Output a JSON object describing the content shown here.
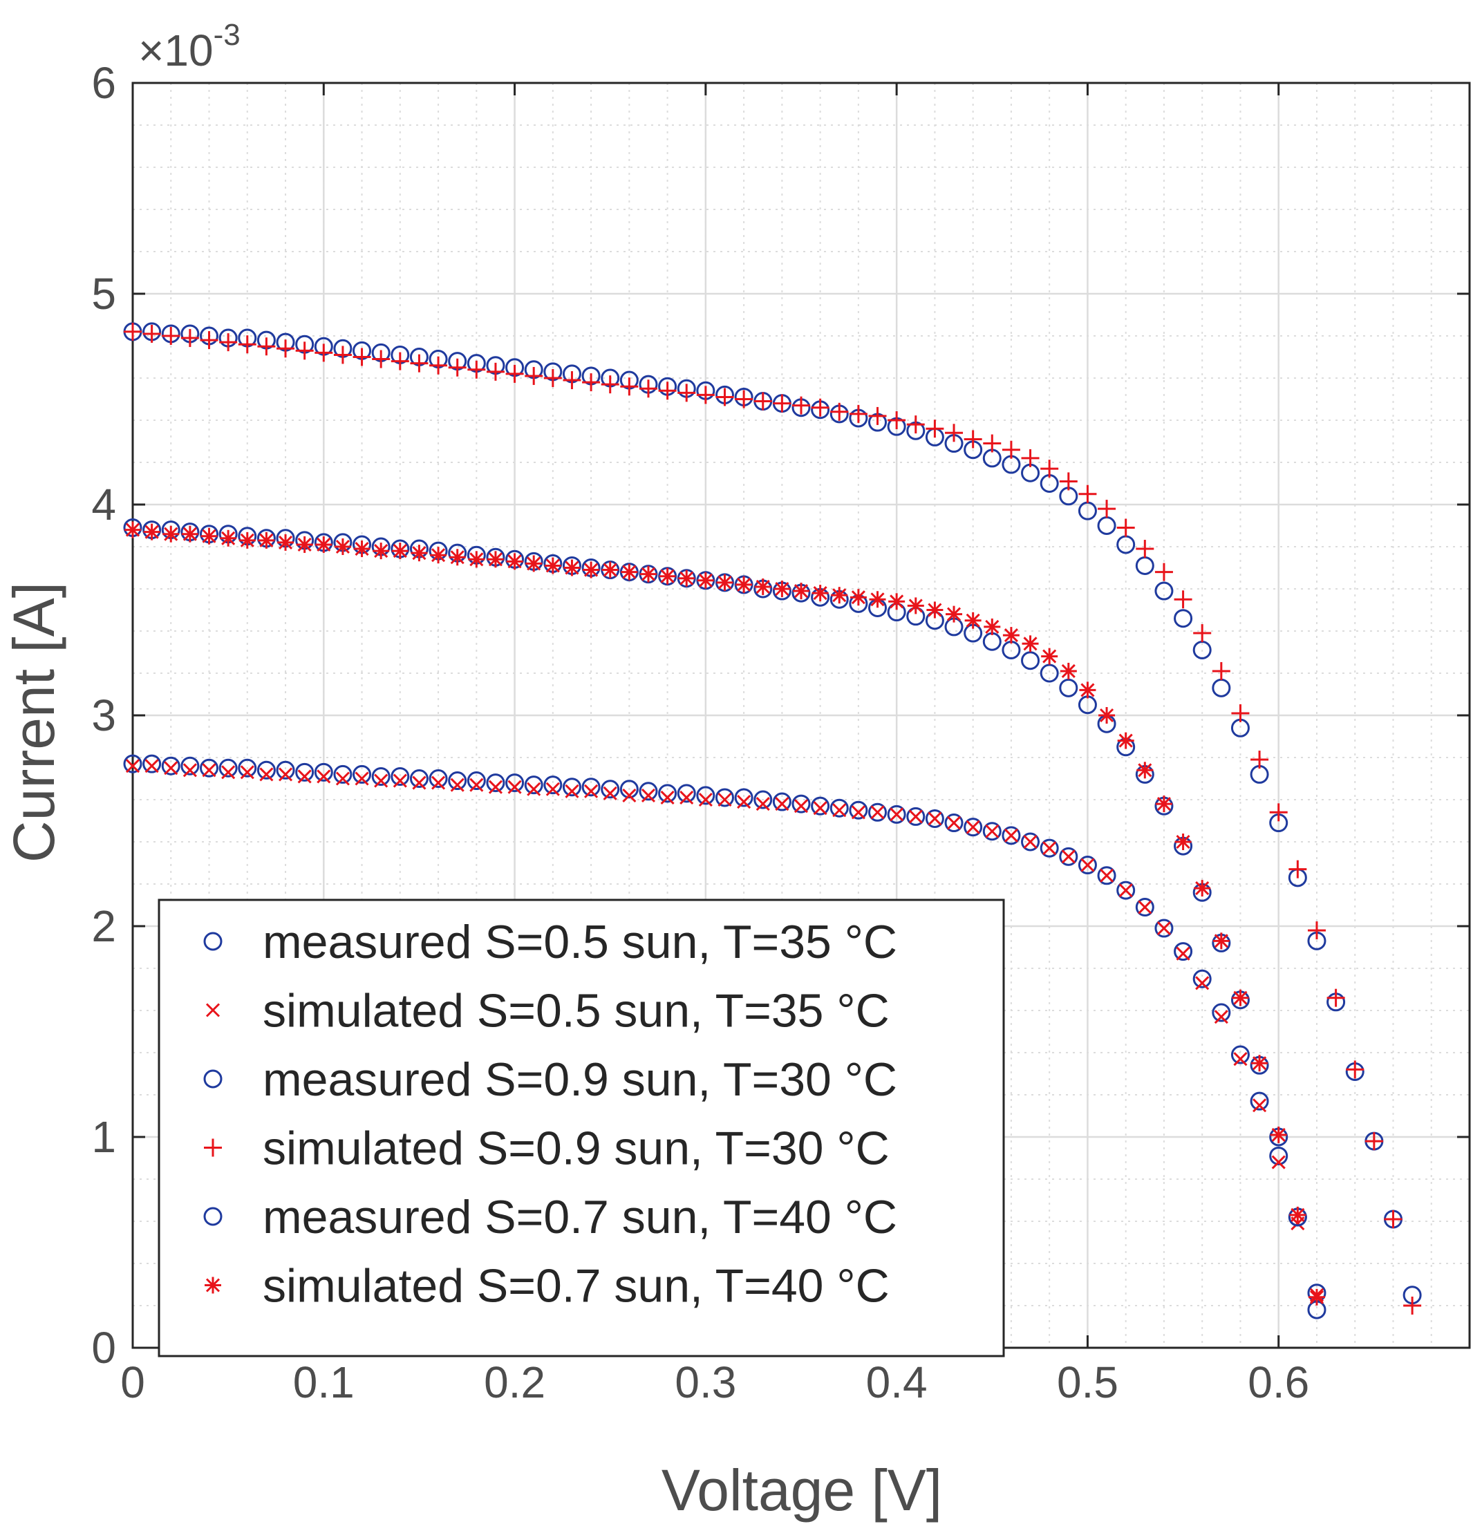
{
  "chart_data": {
    "type": "scatter",
    "title": "",
    "xlabel": "Voltage [V]",
    "ylabel": "Current [A]",
    "y_exponent_label": "×10",
    "y_exponent_power": "-3",
    "xlim": [
      0,
      0.7
    ],
    "ylim": [
      0,
      6
    ],
    "x_ticks": [
      0,
      0.1,
      0.2,
      0.3,
      0.4,
      0.5,
      0.6
    ],
    "x_tick_labels": [
      "0",
      "0.1",
      "0.2",
      "0.3",
      "0.4",
      "0.5",
      "0.6"
    ],
    "y_ticks": [
      0,
      1,
      2,
      3,
      4,
      5,
      6
    ],
    "y_tick_labels": [
      "0",
      "1",
      "2",
      "3",
      "4",
      "5",
      "6"
    ],
    "grid": true,
    "minor_grid": true,
    "legend_position": "bottom-left",
    "colors": {
      "measured": "#1f3a9e",
      "simulated": "#e8141b",
      "axis": "#262626",
      "grid": "#dcdcdc"
    },
    "series": [
      {
        "name": "measured S=0.5 sun, T=35 °C",
        "marker": "circle",
        "color": "#1f3a9e",
        "x": [
          0,
          0.01,
          0.02,
          0.03,
          0.04,
          0.05,
          0.06,
          0.07,
          0.08,
          0.09,
          0.1,
          0.11,
          0.12,
          0.13,
          0.14,
          0.15,
          0.16,
          0.17,
          0.18,
          0.19,
          0.2,
          0.21,
          0.22,
          0.23,
          0.24,
          0.25,
          0.26,
          0.27,
          0.28,
          0.29,
          0.3,
          0.31,
          0.32,
          0.33,
          0.34,
          0.35,
          0.36,
          0.37,
          0.38,
          0.39,
          0.4,
          0.41,
          0.42,
          0.43,
          0.44,
          0.45,
          0.46,
          0.47,
          0.48,
          0.49,
          0.5,
          0.51,
          0.52,
          0.53,
          0.54,
          0.55,
          0.56,
          0.57,
          0.58,
          0.59,
          0.6,
          0.61,
          0.62
        ],
        "y": [
          2.77,
          2.77,
          2.76,
          2.76,
          2.75,
          2.75,
          2.75,
          2.74,
          2.74,
          2.73,
          2.73,
          2.72,
          2.72,
          2.71,
          2.71,
          2.7,
          2.7,
          2.69,
          2.69,
          2.68,
          2.68,
          2.67,
          2.67,
          2.66,
          2.66,
          2.65,
          2.65,
          2.64,
          2.63,
          2.63,
          2.62,
          2.61,
          2.61,
          2.6,
          2.59,
          2.58,
          2.57,
          2.56,
          2.55,
          2.54,
          2.53,
          2.52,
          2.51,
          2.49,
          2.47,
          2.45,
          2.43,
          2.4,
          2.37,
          2.33,
          2.29,
          2.24,
          2.17,
          2.09,
          1.99,
          1.88,
          1.75,
          1.59,
          1.39,
          1.17,
          0.91,
          0.62,
          0.26
        ]
      },
      {
        "name": "simulated S=0.5 sun, T=35 °C",
        "marker": "x",
        "color": "#e8141b",
        "x": [
          0,
          0.01,
          0.02,
          0.03,
          0.04,
          0.05,
          0.06,
          0.07,
          0.08,
          0.09,
          0.1,
          0.11,
          0.12,
          0.13,
          0.14,
          0.15,
          0.16,
          0.17,
          0.18,
          0.19,
          0.2,
          0.21,
          0.22,
          0.23,
          0.24,
          0.25,
          0.26,
          0.27,
          0.28,
          0.29,
          0.3,
          0.31,
          0.32,
          0.33,
          0.34,
          0.35,
          0.36,
          0.37,
          0.38,
          0.39,
          0.4,
          0.41,
          0.42,
          0.43,
          0.44,
          0.45,
          0.46,
          0.47,
          0.48,
          0.49,
          0.5,
          0.51,
          0.52,
          0.53,
          0.54,
          0.55,
          0.56,
          0.57,
          0.58,
          0.59,
          0.6,
          0.61,
          0.62
        ],
        "y": [
          2.76,
          2.76,
          2.75,
          2.74,
          2.74,
          2.73,
          2.73,
          2.72,
          2.72,
          2.71,
          2.71,
          2.7,
          2.7,
          2.69,
          2.69,
          2.68,
          2.68,
          2.67,
          2.67,
          2.66,
          2.66,
          2.65,
          2.65,
          2.64,
          2.64,
          2.63,
          2.62,
          2.62,
          2.61,
          2.61,
          2.6,
          2.6,
          2.59,
          2.58,
          2.58,
          2.57,
          2.56,
          2.55,
          2.54,
          2.54,
          2.53,
          2.52,
          2.51,
          2.49,
          2.47,
          2.45,
          2.43,
          2.4,
          2.37,
          2.33,
          2.29,
          2.24,
          2.17,
          2.09,
          1.99,
          1.87,
          1.73,
          1.57,
          1.37,
          1.15,
          0.88,
          0.59,
          0.25
        ]
      },
      {
        "name": "measured S=0.9 sun, T=30 °C",
        "marker": "circle",
        "color": "#1f3a9e",
        "x": [
          0,
          0.01,
          0.02,
          0.03,
          0.04,
          0.05,
          0.06,
          0.07,
          0.08,
          0.09,
          0.1,
          0.11,
          0.12,
          0.13,
          0.14,
          0.15,
          0.16,
          0.17,
          0.18,
          0.19,
          0.2,
          0.21,
          0.22,
          0.23,
          0.24,
          0.25,
          0.26,
          0.27,
          0.28,
          0.29,
          0.3,
          0.31,
          0.32,
          0.33,
          0.34,
          0.35,
          0.36,
          0.37,
          0.38,
          0.39,
          0.4,
          0.41,
          0.42,
          0.43,
          0.44,
          0.45,
          0.46,
          0.47,
          0.48,
          0.49,
          0.5,
          0.51,
          0.52,
          0.53,
          0.54,
          0.55,
          0.56,
          0.57,
          0.58,
          0.59,
          0.6,
          0.61,
          0.62,
          0.63,
          0.64,
          0.65,
          0.66,
          0.67
        ],
        "y": [
          4.82,
          4.82,
          4.81,
          4.81,
          4.8,
          4.79,
          4.79,
          4.78,
          4.77,
          4.76,
          4.75,
          4.74,
          4.73,
          4.72,
          4.71,
          4.7,
          4.69,
          4.68,
          4.67,
          4.66,
          4.65,
          4.64,
          4.63,
          4.62,
          4.61,
          4.6,
          4.59,
          4.57,
          4.56,
          4.55,
          4.54,
          4.52,
          4.51,
          4.49,
          4.48,
          4.46,
          4.45,
          4.43,
          4.41,
          4.39,
          4.37,
          4.35,
          4.32,
          4.29,
          4.26,
          4.22,
          4.19,
          4.15,
          4.1,
          4.04,
          3.97,
          3.9,
          3.81,
          3.71,
          3.59,
          3.46,
          3.31,
          3.13,
          2.94,
          2.72,
          2.49,
          2.23,
          1.93,
          1.64,
          1.31,
          0.98,
          0.61,
          0.25
        ]
      },
      {
        "name": "simulated S=0.9 sun, T=30 °C",
        "marker": "plus",
        "color": "#e8141b",
        "x": [
          0,
          0.01,
          0.02,
          0.03,
          0.04,
          0.05,
          0.06,
          0.07,
          0.08,
          0.09,
          0.1,
          0.11,
          0.12,
          0.13,
          0.14,
          0.15,
          0.16,
          0.17,
          0.18,
          0.19,
          0.2,
          0.21,
          0.22,
          0.23,
          0.24,
          0.25,
          0.26,
          0.27,
          0.28,
          0.29,
          0.3,
          0.31,
          0.32,
          0.33,
          0.34,
          0.35,
          0.36,
          0.37,
          0.38,
          0.39,
          0.4,
          0.41,
          0.42,
          0.43,
          0.44,
          0.45,
          0.46,
          0.47,
          0.48,
          0.49,
          0.5,
          0.51,
          0.52,
          0.53,
          0.54,
          0.55,
          0.56,
          0.57,
          0.58,
          0.59,
          0.6,
          0.61,
          0.62,
          0.63,
          0.64,
          0.65,
          0.66,
          0.67
        ],
        "y": [
          4.82,
          4.81,
          4.8,
          4.79,
          4.78,
          4.77,
          4.76,
          4.75,
          4.74,
          4.73,
          4.72,
          4.71,
          4.7,
          4.69,
          4.68,
          4.67,
          4.66,
          4.65,
          4.64,
          4.63,
          4.62,
          4.61,
          4.6,
          4.59,
          4.58,
          4.57,
          4.56,
          4.55,
          4.54,
          4.53,
          4.52,
          4.51,
          4.5,
          4.49,
          4.48,
          4.47,
          4.46,
          4.44,
          4.43,
          4.42,
          4.4,
          4.38,
          4.36,
          4.34,
          4.31,
          4.29,
          4.26,
          4.22,
          4.17,
          4.11,
          4.05,
          3.98,
          3.89,
          3.79,
          3.68,
          3.55,
          3.39,
          3.21,
          3.01,
          2.79,
          2.54,
          2.27,
          1.98,
          1.66,
          1.32,
          0.98,
          0.61,
          0.2
        ]
      },
      {
        "name": "measured S=0.7 sun, T=40 °C",
        "marker": "circle",
        "color": "#1f3a9e",
        "x": [
          0,
          0.01,
          0.02,
          0.03,
          0.04,
          0.05,
          0.06,
          0.07,
          0.08,
          0.09,
          0.1,
          0.11,
          0.12,
          0.13,
          0.14,
          0.15,
          0.16,
          0.17,
          0.18,
          0.19,
          0.2,
          0.21,
          0.22,
          0.23,
          0.24,
          0.25,
          0.26,
          0.27,
          0.28,
          0.29,
          0.3,
          0.31,
          0.32,
          0.33,
          0.34,
          0.35,
          0.36,
          0.37,
          0.38,
          0.39,
          0.4,
          0.41,
          0.42,
          0.43,
          0.44,
          0.45,
          0.46,
          0.47,
          0.48,
          0.49,
          0.5,
          0.51,
          0.52,
          0.53,
          0.54,
          0.55,
          0.56,
          0.57,
          0.58,
          0.59,
          0.6,
          0.61,
          0.62
        ],
        "y": [
          3.89,
          3.88,
          3.88,
          3.87,
          3.86,
          3.86,
          3.85,
          3.84,
          3.84,
          3.83,
          3.82,
          3.82,
          3.81,
          3.8,
          3.79,
          3.79,
          3.78,
          3.77,
          3.76,
          3.75,
          3.74,
          3.73,
          3.72,
          3.71,
          3.7,
          3.69,
          3.68,
          3.67,
          3.66,
          3.65,
          3.64,
          3.63,
          3.62,
          3.6,
          3.59,
          3.58,
          3.56,
          3.55,
          3.53,
          3.51,
          3.49,
          3.47,
          3.45,
          3.42,
          3.39,
          3.35,
          3.31,
          3.26,
          3.2,
          3.13,
          3.05,
          2.96,
          2.85,
          2.72,
          2.57,
          2.38,
          2.16,
          1.92,
          1.65,
          1.34,
          1.0,
          0.62,
          0.18
        ]
      },
      {
        "name": "simulated S=0.7 sun, T=40 °C",
        "marker": "asterisk",
        "color": "#e8141b",
        "x": [
          0,
          0.01,
          0.02,
          0.03,
          0.04,
          0.05,
          0.06,
          0.07,
          0.08,
          0.09,
          0.1,
          0.11,
          0.12,
          0.13,
          0.14,
          0.15,
          0.16,
          0.17,
          0.18,
          0.19,
          0.2,
          0.21,
          0.22,
          0.23,
          0.24,
          0.25,
          0.26,
          0.27,
          0.28,
          0.29,
          0.3,
          0.31,
          0.32,
          0.33,
          0.34,
          0.35,
          0.36,
          0.37,
          0.38,
          0.39,
          0.4,
          0.41,
          0.42,
          0.43,
          0.44,
          0.45,
          0.46,
          0.47,
          0.48,
          0.49,
          0.5,
          0.51,
          0.52,
          0.53,
          0.54,
          0.55,
          0.56,
          0.57,
          0.58,
          0.59,
          0.6,
          0.61,
          0.62
        ],
        "y": [
          3.88,
          3.87,
          3.86,
          3.86,
          3.85,
          3.84,
          3.83,
          3.83,
          3.82,
          3.81,
          3.81,
          3.8,
          3.79,
          3.78,
          3.78,
          3.77,
          3.76,
          3.75,
          3.74,
          3.74,
          3.73,
          3.72,
          3.71,
          3.7,
          3.69,
          3.69,
          3.68,
          3.67,
          3.66,
          3.65,
          3.64,
          3.63,
          3.62,
          3.61,
          3.6,
          3.59,
          3.58,
          3.57,
          3.56,
          3.55,
          3.54,
          3.52,
          3.5,
          3.48,
          3.45,
          3.42,
          3.38,
          3.34,
          3.28,
          3.21,
          3.12,
          3.0,
          2.88,
          2.74,
          2.58,
          2.4,
          2.18,
          1.93,
          1.66,
          1.35,
          1.01,
          0.63,
          0.24
        ]
      }
    ]
  }
}
